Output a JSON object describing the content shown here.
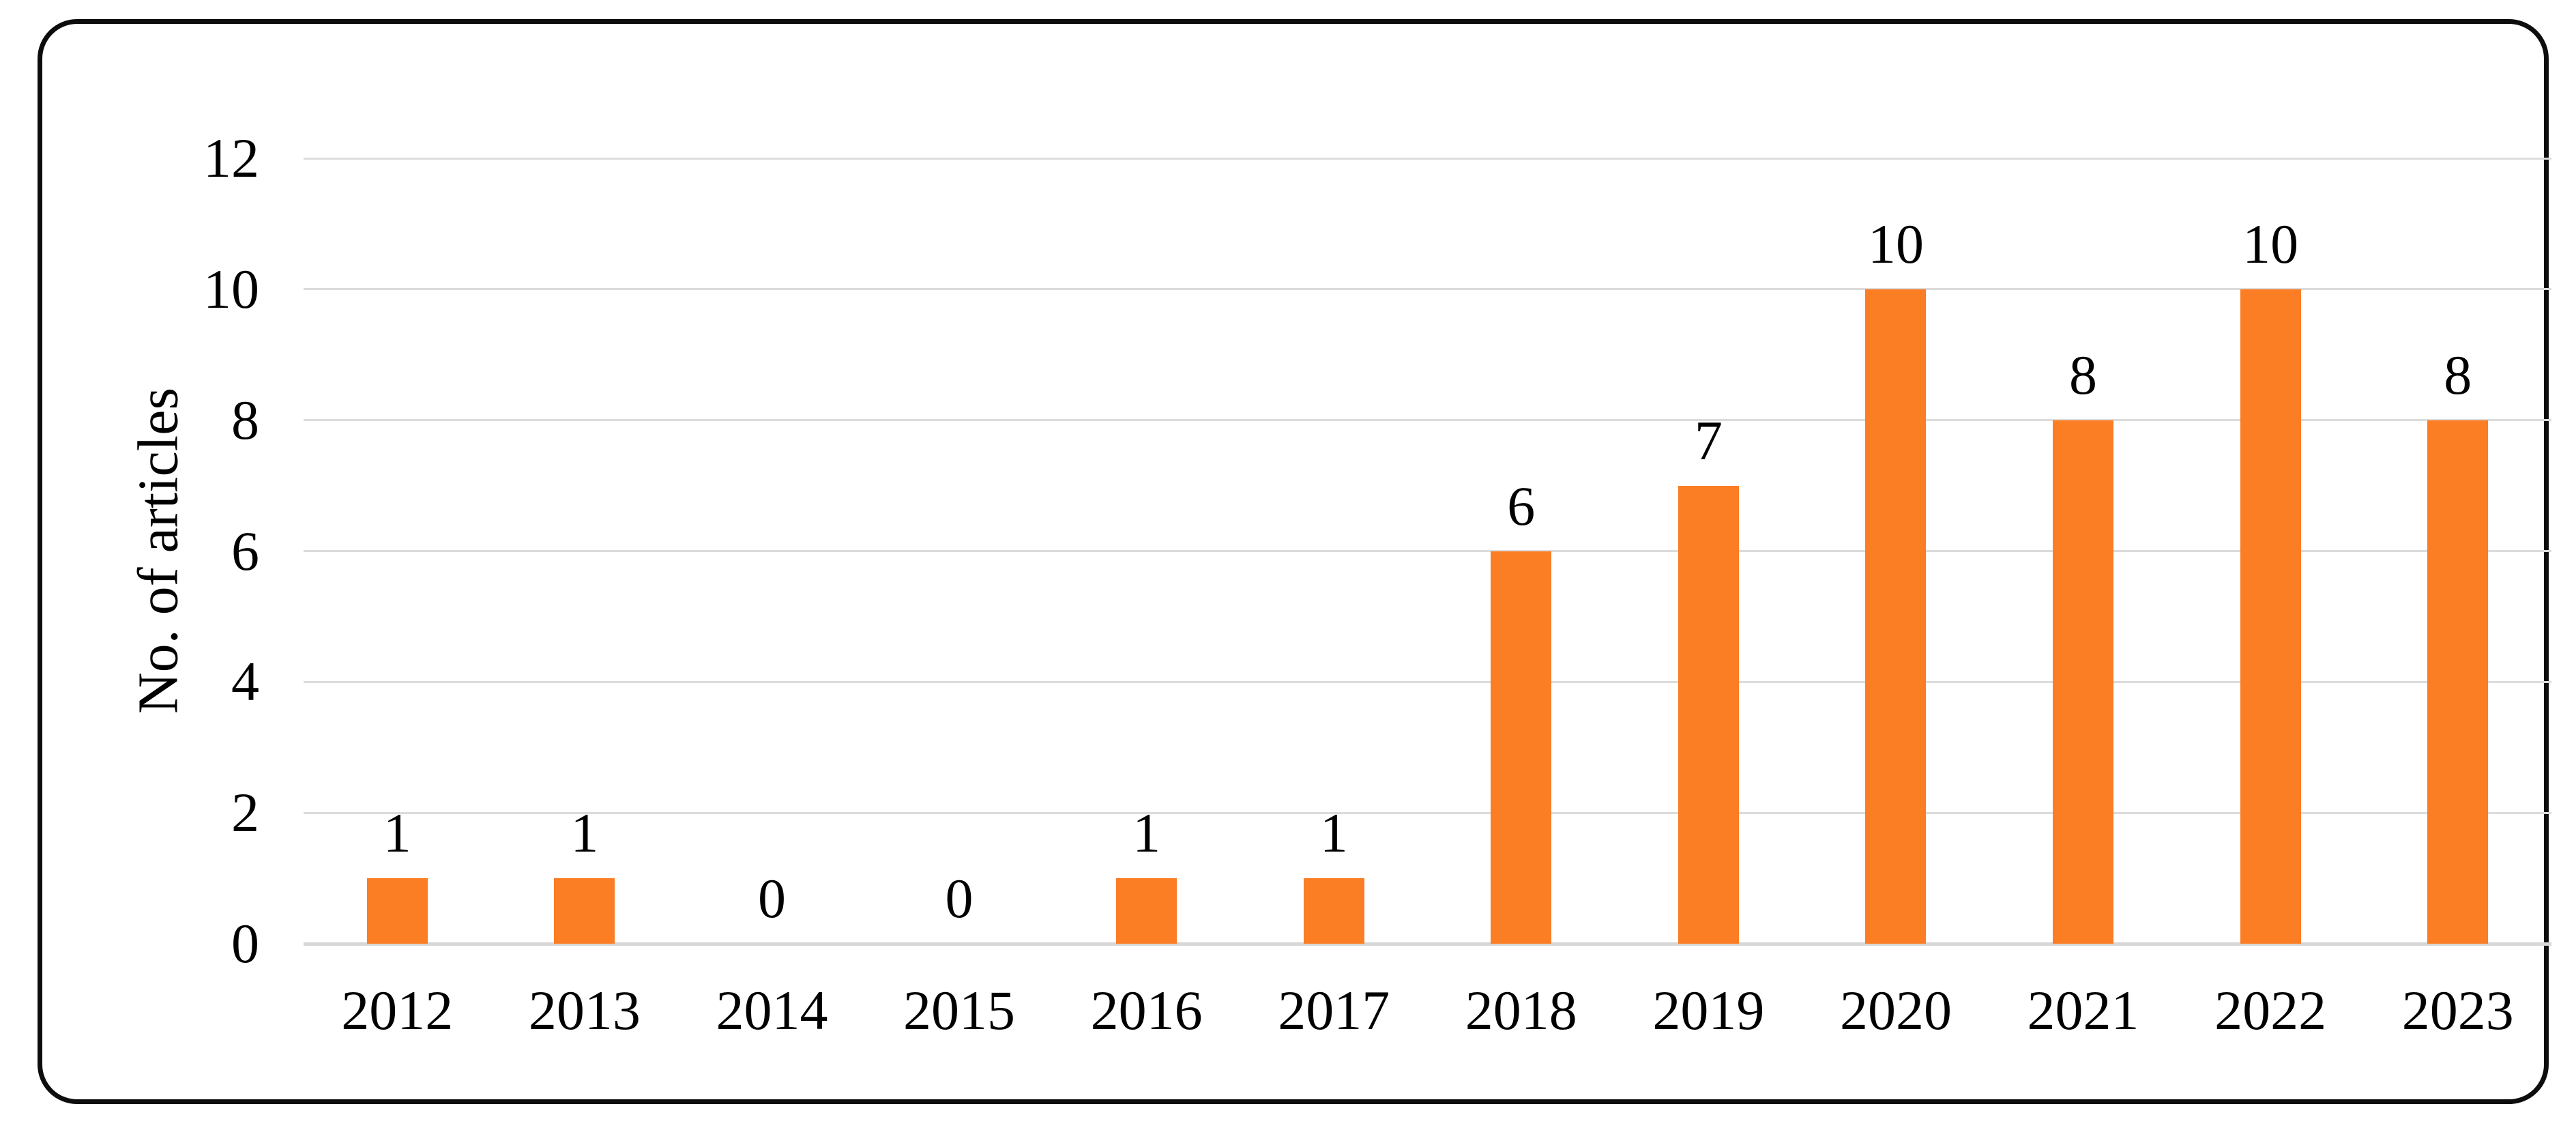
{
  "chart_data": {
    "type": "bar",
    "title": "",
    "xlabel": "",
    "ylabel": "No. of articles",
    "categories": [
      "2012",
      "2013",
      "2014",
      "2015",
      "2016",
      "2017",
      "2018",
      "2019",
      "2020",
      "2021",
      "2022",
      "2023"
    ],
    "values": [
      1,
      1,
      0,
      0,
      1,
      1,
      6,
      7,
      10,
      8,
      10,
      8
    ],
    "data_labels": [
      "1",
      "1",
      "0",
      "0",
      "1",
      "1",
      "6",
      "7",
      "10",
      "8",
      "10",
      "8"
    ],
    "yticks": [
      0,
      2,
      4,
      6,
      8,
      10,
      12
    ],
    "ylim": [
      0,
      12
    ],
    "grid": "horizontal-only",
    "legend": "none",
    "bar_color": "#FB7D24",
    "gridline_color": "#DCDCDC",
    "axis_line_color": "#D7D7D7",
    "text_color": "#000000",
    "frame_border_color": "#0D0D0D"
  }
}
